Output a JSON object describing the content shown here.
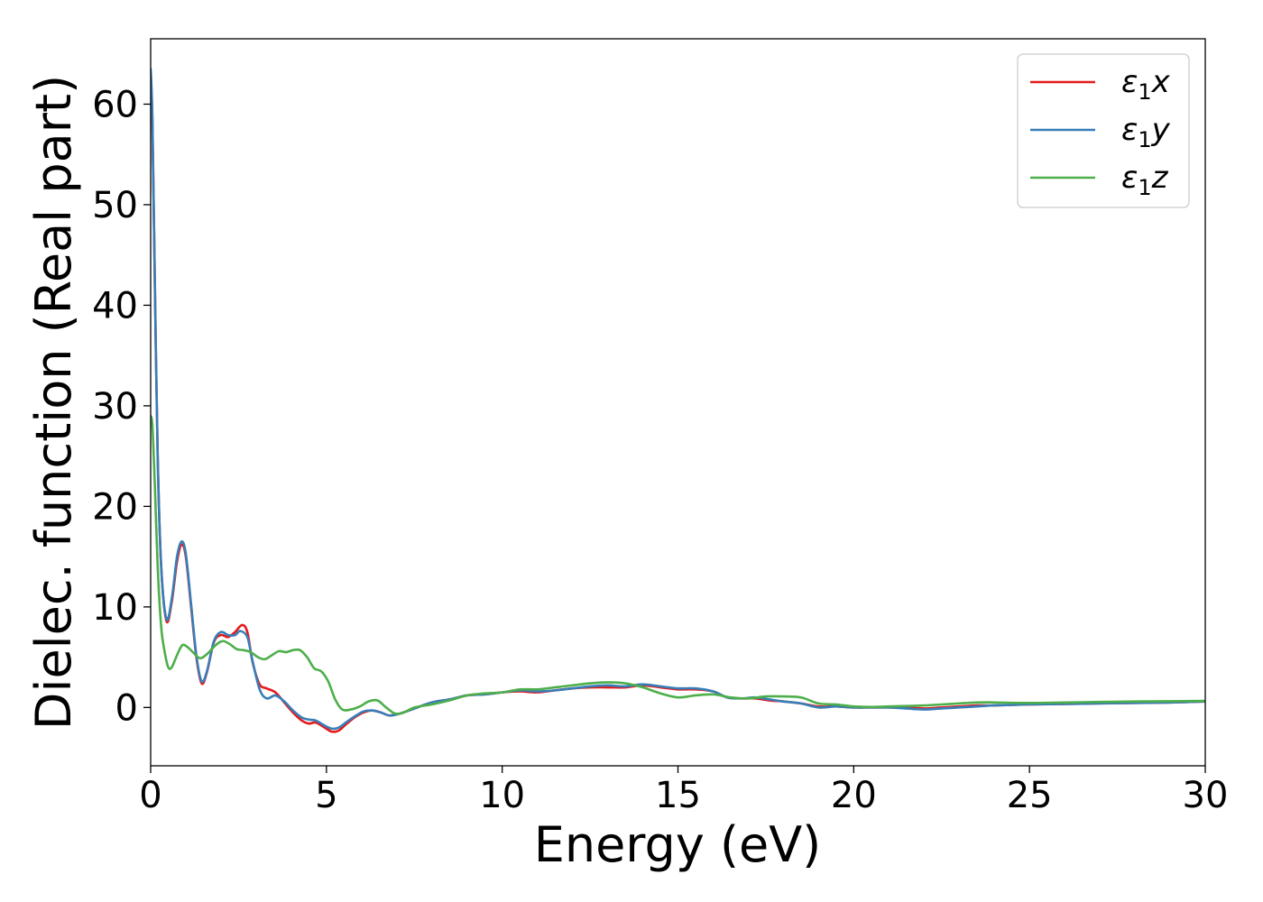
{
  "chart_data": {
    "type": "line",
    "xlabel": "Energy (eV)",
    "ylabel": "Dielec. function (Real part)",
    "xlim": [
      0,
      30
    ],
    "ylim": [
      -5.8,
      66.5
    ],
    "xticks": [
      0,
      5,
      10,
      15,
      20,
      25,
      30
    ],
    "yticks": [
      0,
      10,
      20,
      30,
      40,
      50,
      60
    ],
    "grid": false,
    "legend_position": "top-right",
    "series": [
      {
        "name": "ε1x",
        "legend_main": "ε",
        "legend_sub": "1",
        "legend_var": "x",
        "color": "#e41a1c",
        "x": [
          0.0,
          0.05,
          0.12,
          0.2,
          0.3,
          0.45,
          0.6,
          0.75,
          0.88,
          1.0,
          1.15,
          1.3,
          1.45,
          1.6,
          1.8,
          2.0,
          2.2,
          2.4,
          2.6,
          2.75,
          2.9,
          3.1,
          3.3,
          3.55,
          3.8,
          4.05,
          4.3,
          4.5,
          4.7,
          4.95,
          5.15,
          5.35,
          5.55,
          5.8,
          6.05,
          6.3,
          6.55,
          6.8,
          7.1,
          7.5,
          8.0,
          8.5,
          9.0,
          9.5,
          10.0,
          10.5,
          11.0,
          11.5,
          12.0,
          12.5,
          13.0,
          13.5,
          14.0,
          14.5,
          15.0,
          15.5,
          16.0,
          16.4,
          16.8,
          17.2,
          17.6,
          18.0,
          18.5,
          19.0,
          19.5,
          20.0,
          20.5,
          21.0,
          21.5,
          22.0,
          22.5,
          23.0,
          23.5,
          24.0,
          25.0,
          26.0,
          27.0,
          28.0,
          29.0,
          30.0
        ],
        "values": [
          63.0,
          58.0,
          42.0,
          25.0,
          14.0,
          8.6,
          10.5,
          14.5,
          16.2,
          15.0,
          10.0,
          5.0,
          2.4,
          3.5,
          6.5,
          7.2,
          7.0,
          7.5,
          8.2,
          7.5,
          4.5,
          2.3,
          1.9,
          1.5,
          0.5,
          -0.5,
          -1.3,
          -1.6,
          -1.5,
          -2.0,
          -2.4,
          -2.3,
          -1.7,
          -1.0,
          -0.5,
          -0.3,
          -0.5,
          -0.8,
          -0.6,
          -0.1,
          0.5,
          0.8,
          1.2,
          1.3,
          1.5,
          1.6,
          1.5,
          1.7,
          1.9,
          2.0,
          2.0,
          2.0,
          2.2,
          2.0,
          1.8,
          1.8,
          1.6,
          1.0,
          0.9,
          0.9,
          0.7,
          0.6,
          0.4,
          0.1,
          0.1,
          0.0,
          0.0,
          0.0,
          0.0,
          -0.1,
          0.0,
          0.1,
          0.2,
          0.2,
          0.3,
          0.35,
          0.4,
          0.45,
          0.5,
          0.6
        ]
      },
      {
        "name": "ε1y",
        "legend_main": "ε",
        "legend_sub": "1",
        "legend_var": "y",
        "color": "#377eb8",
        "x": [
          0.0,
          0.05,
          0.12,
          0.2,
          0.3,
          0.45,
          0.6,
          0.75,
          0.88,
          1.0,
          1.15,
          1.3,
          1.45,
          1.6,
          1.8,
          2.0,
          2.2,
          2.4,
          2.55,
          2.75,
          2.9,
          3.1,
          3.3,
          3.55,
          3.8,
          4.05,
          4.3,
          4.5,
          4.7,
          4.95,
          5.15,
          5.35,
          5.55,
          5.8,
          6.05,
          6.3,
          6.55,
          6.8,
          7.1,
          7.5,
          8.0,
          8.5,
          9.0,
          9.5,
          10.0,
          10.5,
          11.0,
          11.5,
          12.0,
          12.5,
          13.0,
          13.5,
          14.0,
          14.5,
          15.0,
          15.5,
          16.0,
          16.4,
          16.8,
          17.2,
          17.6,
          18.0,
          18.5,
          19.0,
          19.5,
          20.0,
          20.5,
          21.0,
          21.5,
          22.0,
          22.5,
          23.0,
          23.5,
          24.0,
          25.0,
          26.0,
          27.0,
          28.0,
          29.0,
          30.0
        ],
        "values": [
          63.5,
          58.5,
          42.0,
          25.0,
          14.0,
          8.8,
          10.8,
          15.0,
          16.5,
          15.3,
          10.3,
          5.2,
          2.6,
          3.6,
          6.6,
          7.5,
          7.2,
          7.2,
          7.6,
          7.0,
          4.6,
          1.8,
          0.9,
          1.2,
          0.6,
          -0.3,
          -1.0,
          -1.2,
          -1.3,
          -1.8,
          -2.1,
          -2.0,
          -1.5,
          -0.9,
          -0.4,
          -0.3,
          -0.5,
          -0.8,
          -0.6,
          -0.1,
          0.5,
          0.8,
          1.2,
          1.3,
          1.5,
          1.7,
          1.6,
          1.7,
          1.9,
          2.1,
          2.2,
          2.1,
          2.3,
          2.1,
          1.9,
          1.9,
          1.6,
          1.0,
          0.9,
          1.0,
          0.8,
          0.6,
          0.4,
          0.0,
          0.1,
          0.0,
          0.0,
          0.0,
          -0.1,
          -0.2,
          -0.1,
          0.0,
          0.1,
          0.2,
          0.3,
          0.35,
          0.4,
          0.45,
          0.5,
          0.6
        ]
      },
      {
        "name": "ε1z",
        "legend_main": "ε",
        "legend_sub": "1",
        "legend_var": "z",
        "color": "#4daf4a",
        "x": [
          0.0,
          0.05,
          0.12,
          0.2,
          0.3,
          0.4,
          0.5,
          0.6,
          0.75,
          0.9,
          1.05,
          1.2,
          1.4,
          1.6,
          1.85,
          2.05,
          2.25,
          2.45,
          2.65,
          2.85,
          3.05,
          3.25,
          3.45,
          3.65,
          3.85,
          4.05,
          4.25,
          4.45,
          4.65,
          4.85,
          5.05,
          5.25,
          5.45,
          5.7,
          5.95,
          6.2,
          6.45,
          6.7,
          6.95,
          7.2,
          7.5,
          8.0,
          8.5,
          9.0,
          9.5,
          10.0,
          10.5,
          11.0,
          11.5,
          12.0,
          12.5,
          13.0,
          13.5,
          14.0,
          14.5,
          15.0,
          15.5,
          16.0,
          16.5,
          17.0,
          17.5,
          18.0,
          18.5,
          19.0,
          19.5,
          20.0,
          20.5,
          21.0,
          21.5,
          22.0,
          22.5,
          23.0,
          23.5,
          24.0,
          25.0,
          26.0,
          27.0,
          28.0,
          29.0,
          30.0
        ],
        "values": [
          29.0,
          28.0,
          22.0,
          14.0,
          8.0,
          5.5,
          4.0,
          4.0,
          5.2,
          6.2,
          6.0,
          5.5,
          4.9,
          5.3,
          6.2,
          6.6,
          6.3,
          5.8,
          5.7,
          5.5,
          5.0,
          4.8,
          5.2,
          5.6,
          5.5,
          5.7,
          5.7,
          5.0,
          3.9,
          3.6,
          2.6,
          0.8,
          -0.2,
          -0.2,
          0.1,
          0.6,
          0.7,
          0.0,
          -0.6,
          -0.5,
          0.0,
          0.3,
          0.7,
          1.2,
          1.4,
          1.5,
          1.8,
          1.8,
          2.0,
          2.2,
          2.4,
          2.5,
          2.4,
          2.0,
          1.4,
          1.0,
          1.2,
          1.3,
          1.0,
          0.9,
          1.1,
          1.1,
          1.0,
          0.4,
          0.3,
          0.1,
          0.05,
          0.1,
          0.15,
          0.2,
          0.3,
          0.4,
          0.5,
          0.5,
          0.45,
          0.5,
          0.55,
          0.6,
          0.62,
          0.65
        ]
      }
    ]
  }
}
